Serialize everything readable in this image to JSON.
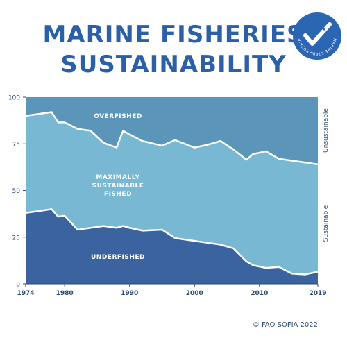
{
  "title_line1": "MARINE FISHERIES",
  "title_line2": "SUSTAINABILITY",
  "logo": {
    "text": "MARINE STEWARDSHIP COUNCIL",
    "icon": "fish-checkmark-icon"
  },
  "credit": "© FAO SOFIA 2022",
  "colors": {
    "title": "#2b5fa8",
    "overfished": "#5b95b9",
    "maximally": "#78b8d3",
    "underfished": "#3a63a0",
    "logo": "#2a66b3",
    "divider": "#ffffff"
  },
  "chart_data": {
    "type": "area",
    "stacked": true,
    "x_ticks": [
      1974,
      1980,
      1990,
      2000,
      2010,
      2019
    ],
    "y_ticks": [
      0,
      25,
      50,
      75,
      100
    ],
    "xlim": [
      1974,
      2019
    ],
    "ylim": [
      0,
      100
    ],
    "grid": false,
    "legend": "none",
    "x": [
      1974,
      1976,
      1978,
      1979,
      1980,
      1982,
      1984,
      1986,
      1988,
      1989,
      1990,
      1992,
      1995,
      1997,
      2000,
      2002,
      2004,
      2006,
      2008,
      2009,
      2011,
      2013,
      2015,
      2017,
      2019
    ],
    "boundary_underfished": [
      38,
      39,
      40,
      36,
      36.5,
      29,
      30,
      31,
      30,
      31,
      30,
      28.5,
      29,
      24.5,
      23,
      22,
      21,
      19,
      12,
      10,
      8.5,
      9,
      5.5,
      5,
      6.5
    ],
    "boundary_overfished": [
      90,
      91,
      92,
      86.5,
      86.5,
      83,
      82,
      75.5,
      73,
      82,
      80,
      76.5,
      74,
      77,
      73,
      74.5,
      76.5,
      72,
      66.5,
      69.5,
      71,
      67,
      66,
      65,
      64
    ],
    "series_labels": {
      "overfished": "OVERFISHED",
      "maximally": [
        "MAXIMALLY",
        "SUSTAINABLE",
        "FISHED"
      ],
      "underfished": "UNDERFISHED"
    },
    "side_labels": {
      "top": "Unsustainable",
      "bottom": "Sustainable"
    }
  }
}
